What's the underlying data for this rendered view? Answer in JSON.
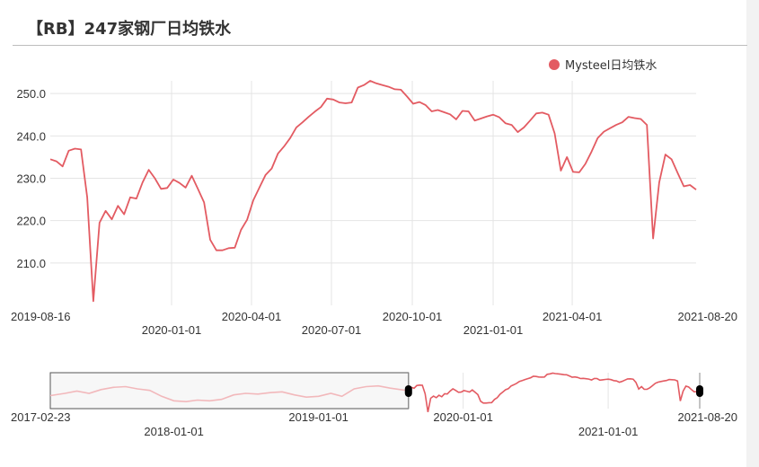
{
  "header": {
    "title": "【RB】247家钢厂日均铁水"
  },
  "colors": {
    "series": "#e35b62",
    "grid": "#e4e4e4",
    "brush_fill": "#f7f7f7"
  },
  "chart_data": {
    "type": "line",
    "title": "【RB】247家钢厂日均铁水",
    "legend": {
      "position": "top-right",
      "entries": [
        "Mysteel日均铁水"
      ]
    },
    "grid": true,
    "ylim": [
      200,
      253
    ],
    "xlim": [
      "2019-08-16",
      "2021-08-20"
    ],
    "y_ticks": [
      "210.0",
      "220.0",
      "230.0",
      "240.0",
      "250.0"
    ],
    "x_ticks": [
      {
        "label": "2019-08-16",
        "date": "2019-08-16"
      },
      {
        "label": "2020-01-01",
        "date": "2020-01-01"
      },
      {
        "label": "2020-04-01",
        "date": "2020-04-01"
      },
      {
        "label": "2020-07-01",
        "date": "2020-07-01"
      },
      {
        "label": "2020-10-01",
        "date": "2020-10-01"
      },
      {
        "label": "2021-01-01",
        "date": "2021-01-01"
      },
      {
        "label": "2021-04-01",
        "date": "2021-04-01"
      },
      {
        "label": "2021-08-20",
        "date": "2021-08-20"
      }
    ],
    "series": [
      {
        "name": "Mysteel日均铁水",
        "x": [
          "2019-08-16",
          "2019-08-23",
          "2019-08-30",
          "2019-09-06",
          "2019-09-13",
          "2019-09-20",
          "2019-09-27",
          "2019-10-04",
          "2019-10-11",
          "2019-10-18",
          "2019-10-25",
          "2019-11-01",
          "2019-11-08",
          "2019-11-15",
          "2019-11-22",
          "2019-11-29",
          "2019-12-06",
          "2019-12-13",
          "2019-12-20",
          "2019-12-27",
          "2020-01-03",
          "2020-01-10",
          "2020-01-17",
          "2020-01-24",
          "2020-01-31",
          "2020-02-07",
          "2020-02-14",
          "2020-02-21",
          "2020-02-28",
          "2020-03-06",
          "2020-03-13",
          "2020-03-20",
          "2020-03-27",
          "2020-04-03",
          "2020-04-10",
          "2020-04-17",
          "2020-04-24",
          "2020-05-01",
          "2020-05-08",
          "2020-05-15",
          "2020-05-22",
          "2020-05-29",
          "2020-06-05",
          "2020-06-12",
          "2020-06-19",
          "2020-06-26",
          "2020-07-03",
          "2020-07-10",
          "2020-07-17",
          "2020-07-24",
          "2020-07-31",
          "2020-08-07",
          "2020-08-14",
          "2020-08-21",
          "2020-08-28",
          "2020-09-04",
          "2020-09-11",
          "2020-09-18",
          "2020-09-25",
          "2020-10-02",
          "2020-10-09",
          "2020-10-16",
          "2020-10-23",
          "2020-10-30",
          "2020-11-06",
          "2020-11-13",
          "2020-11-20",
          "2020-11-27",
          "2020-12-04",
          "2020-12-11",
          "2020-12-18",
          "2020-12-25",
          "2021-01-01",
          "2021-01-08",
          "2021-01-15",
          "2021-01-22",
          "2021-01-29",
          "2021-02-05",
          "2021-02-12",
          "2021-02-19",
          "2021-02-26",
          "2021-03-05",
          "2021-03-12",
          "2021-03-19",
          "2021-03-26",
          "2021-04-02",
          "2021-04-09",
          "2021-04-16",
          "2021-04-23",
          "2021-04-30",
          "2021-05-07",
          "2021-05-14",
          "2021-05-21",
          "2021-05-28",
          "2021-06-04",
          "2021-06-11",
          "2021-06-18",
          "2021-06-25",
          "2021-07-02",
          "2021-07-09",
          "2021-07-16",
          "2021-07-23",
          "2021-07-30",
          "2021-08-06",
          "2021-08-13",
          "2021-08-20"
        ],
        "values": [
          234.5,
          234.0,
          232.8,
          236.5,
          237.0,
          236.8,
          225.5,
          201.0,
          219.5,
          222.3,
          220.3,
          223.5,
          221.5,
          225.5,
          225.2,
          229.0,
          232.0,
          230.0,
          227.5,
          227.7,
          229.7,
          228.9,
          227.8,
          230.6,
          227.5,
          224.3,
          215.5,
          213.0,
          213.0,
          213.5,
          213.6,
          217.8,
          220.2,
          224.8,
          227.8,
          230.8,
          232.3,
          235.8,
          237.5,
          239.5,
          242.0,
          243.2,
          244.5,
          245.7,
          246.8,
          248.8,
          248.6,
          247.9,
          247.7,
          247.9,
          251.4,
          252.0,
          253.0,
          252.4,
          252.0,
          251.6,
          251.0,
          250.9,
          249.3,
          247.6,
          248.0,
          247.3,
          245.8,
          246.1,
          245.6,
          245.1,
          243.9,
          245.9,
          245.8,
          243.6,
          244.1,
          244.6,
          245.0,
          244.4,
          243.0,
          242.6,
          240.9,
          242.0,
          243.6,
          245.3,
          245.5,
          245.0,
          240.6,
          231.8,
          235.0,
          231.5,
          231.4,
          233.4,
          236.3,
          239.5,
          241.0,
          241.8,
          242.6,
          243.2,
          244.5,
          244.2,
          244.0,
          242.6,
          215.8,
          229.0,
          235.6,
          234.5,
          231.2,
          228.1,
          228.4,
          227.3
        ]
      }
    ],
    "navigator": {
      "range": [
        "2017-02-23",
        "2021-08-20"
      ],
      "selection": [
        "2019-08-16",
        "2021-08-20"
      ],
      "x_ticks": [
        {
          "label": "2017-02-23",
          "date": "2017-02-23"
        },
        {
          "label": "2018-01-01",
          "date": "2018-01-01"
        },
        {
          "label": "2019-01-01",
          "date": "2019-01-01"
        },
        {
          "label": "2020-01-01",
          "date": "2020-01-01"
        },
        {
          "label": "2021-01-01",
          "date": "2021-01-01"
        },
        {
          "label": "2021-08-20",
          "date": "2021-08-20"
        }
      ],
      "history": {
        "x": [
          "2017-02-23",
          "2017-04-01",
          "2017-05-01",
          "2017-06-01",
          "2017-07-01",
          "2017-08-01",
          "2017-09-01",
          "2017-10-01",
          "2017-11-01",
          "2017-12-01",
          "2018-01-01",
          "2018-02-01",
          "2018-03-01",
          "2018-04-01",
          "2018-05-01",
          "2018-06-01",
          "2018-07-01",
          "2018-08-01",
          "2018-09-01",
          "2018-10-01",
          "2018-11-01",
          "2018-12-01",
          "2019-01-01",
          "2019-02-01",
          "2019-03-01",
          "2019-04-01",
          "2019-05-01",
          "2019-06-01",
          "2019-07-01",
          "2019-08-09"
        ],
        "values": [
          223,
          226,
          229,
          226,
          231,
          234,
          235,
          232,
          230,
          222,
          216,
          215,
          217,
          216,
          218,
          224,
          226,
          225,
          227,
          228,
          224,
          221,
          222,
          226,
          222,
          232,
          235,
          236,
          233,
          230
        ]
      }
    }
  }
}
